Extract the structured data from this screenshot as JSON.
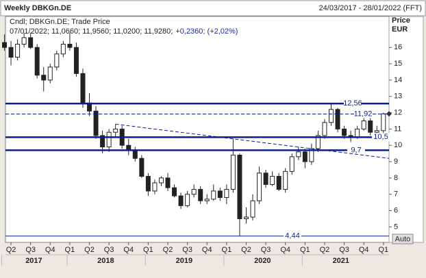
{
  "header": {
    "title": "Weekly DBKGn.DE",
    "range": "24/03/2017 - 28/01/2022 (FFT)"
  },
  "chart_data": {
    "type": "candlestick",
    "info": "Cndl; DBKGn.DE; Trade Price",
    "quote": "07/01/2022; 11,0660; 11,9560; 11,0200; 11,9280;",
    "change": "+0,2360; (+2,02%)",
    "y_label": "Price",
    "y_unit": "EUR",
    "scale_button": "Auto",
    "categories": [
      null,
      "Q2",
      null,
      null,
      "Q3",
      null,
      null,
      "Q4",
      null,
      null,
      "Q1",
      null,
      null,
      "Q2",
      null,
      null,
      "Q3",
      null,
      null,
      "Q4",
      null,
      null,
      "Q1",
      null,
      null,
      "Q2",
      null,
      null,
      "Q3",
      null,
      null,
      "Q4",
      null,
      null,
      "Q1",
      null,
      null,
      "Q2",
      null,
      null,
      "Q3",
      null,
      null,
      "Q4",
      null,
      null,
      "Q1",
      null,
      null,
      "Q2",
      null,
      null,
      "Q3",
      null,
      null,
      "Q4",
      null,
      null,
      "Q1"
    ],
    "years": [
      "2017",
      "2018",
      "2019",
      "2020",
      "2021"
    ],
    "open": [
      16.3,
      16.0,
      15.4,
      16.2,
      16.6,
      16.0,
      14.3,
      14.0,
      14.8,
      15.6,
      16.2,
      16.0,
      14.4,
      12.6,
      12.1,
      10.6,
      9.9,
      10.8,
      11.0,
      10.0,
      9.7,
      9.2,
      8.1,
      7.2,
      7.7,
      8.0,
      7.4,
      6.9,
      6.3,
      7.0,
      7.3,
      6.6,
      6.7,
      7.2,
      6.8,
      7.3,
      9.4,
      5.5,
      5.6,
      6.6,
      8.3,
      7.6,
      8.1,
      7.3,
      8.4,
      9.3,
      9.6,
      9.0,
      9.8,
      10.6,
      11.4,
      12.2,
      11.0,
      10.6,
      10.5,
      11.0,
      11.5,
      10.8,
      10.9
    ],
    "high": [
      16.8,
      16.4,
      16.5,
      16.9,
      16.9,
      16.2,
      14.8,
      15.0,
      15.8,
      16.4,
      16.9,
      16.3,
      14.7,
      13.2,
      12.4,
      10.9,
      11.0,
      11.3,
      11.2,
      10.4,
      9.9,
      9.4,
      8.3,
      7.9,
      8.1,
      8.3,
      7.6,
      7.1,
      7.2,
      7.6,
      7.5,
      7.0,
      7.6,
      7.4,
      7.6,
      10.4,
      9.5,
      6.2,
      7.0,
      8.7,
      8.5,
      8.4,
      8.3,
      8.6,
      9.5,
      9.9,
      9.8,
      10.1,
      10.9,
      11.6,
      12.6,
      12.3,
      11.2,
      10.9,
      11.2,
      11.8,
      11.7,
      11.2,
      12.0
    ],
    "low": [
      15.8,
      14.9,
      15.2,
      16.0,
      15.9,
      14.1,
      13.3,
      13.8,
      14.6,
      15.4,
      15.8,
      14.2,
      12.3,
      11.8,
      10.4,
      9.5,
      9.6,
      10.5,
      9.8,
      9.4,
      9.0,
      8.0,
      6.9,
      7.0,
      7.5,
      7.2,
      6.8,
      6.1,
      6.2,
      6.8,
      6.4,
      6.4,
      6.6,
      6.6,
      6.4,
      7.1,
      4.44,
      5.2,
      5.4,
      6.4,
      7.4,
      7.5,
      7.2,
      7.1,
      8.2,
      9.1,
      8.6,
      8.8,
      9.6,
      10.4,
      11.2,
      10.8,
      10.4,
      10.2,
      10.4,
      10.9,
      10.6,
      10.6,
      10.7
    ],
    "close": [
      16.0,
      15.4,
      16.2,
      16.6,
      16.0,
      14.3,
      14.0,
      14.8,
      15.6,
      16.2,
      16.0,
      14.4,
      12.6,
      12.1,
      10.6,
      9.9,
      10.8,
      11.0,
      10.0,
      9.7,
      9.2,
      8.1,
      7.2,
      7.7,
      8.0,
      7.4,
      6.9,
      6.3,
      7.0,
      7.3,
      6.6,
      6.7,
      7.2,
      6.8,
      7.3,
      9.4,
      5.5,
      5.6,
      6.6,
      8.3,
      7.6,
      8.1,
      7.3,
      8.4,
      9.3,
      9.6,
      9.0,
      9.8,
      10.6,
      11.4,
      12.2,
      11.0,
      10.6,
      10.5,
      11.0,
      11.5,
      10.8,
      10.9,
      11.93
    ],
    "hlines": [
      {
        "value": 12.56,
        "label": "12,56",
        "style": "solid"
      },
      {
        "value": 11.92,
        "label": "11,92",
        "style": "dashed"
      },
      {
        "value": 10.5,
        "label": "10,5",
        "style": "solid"
      },
      {
        "value": 9.7,
        "label": "9,7",
        "style": "solid"
      },
      {
        "value": 4.44,
        "label": "4,44",
        "style": "thin"
      }
    ],
    "trendline": [
      11.3,
      9.2
    ],
    "color_up": "#ffffff",
    "color_down": "#222222",
    "line_color": "#0b1f8a",
    "ylim": [
      4.05,
      17.9
    ],
    "yticks": [
      5,
      6,
      7,
      8,
      9,
      10,
      11,
      12,
      13,
      14,
      15,
      16
    ]
  }
}
